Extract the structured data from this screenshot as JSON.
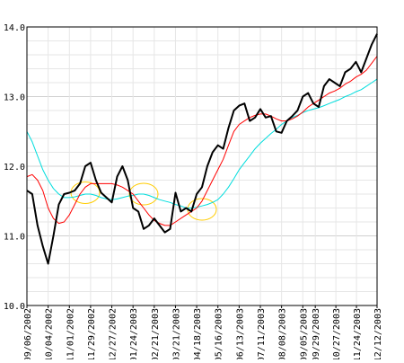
{
  "chart_data": {
    "type": "line",
    "title": "",
    "xlabel": "",
    "ylabel": "",
    "ylim": [
      10.0,
      14.0
    ],
    "grid": true,
    "legend": "none",
    "y_ticks": [
      "10.0",
      "11.0",
      "12.0",
      "13.0",
      "14.0"
    ],
    "x": [
      "09/06/2002",
      "09/13/2002",
      "09/20/2002",
      "09/27/2002",
      "10/04/2002",
      "10/11/2002",
      "10/18/2002",
      "10/25/2002",
      "11/01/2002",
      "11/08/2002",
      "11/15/2002",
      "11/22/2002",
      "11/29/2002",
      "12/06/2002",
      "12/13/2002",
      "12/20/2002",
      "12/27/2002",
      "01/03/2003",
      "01/10/2003",
      "01/17/2003",
      "01/24/2003",
      "01/31/2003",
      "02/07/2003",
      "02/14/2003",
      "02/21/2003",
      "02/28/2003",
      "03/07/2003",
      "03/14/2003",
      "03/21/2003",
      "03/28/2003",
      "04/04/2003",
      "04/11/2003",
      "04/18/2003",
      "04/25/2003",
      "05/02/2003",
      "05/09/2003",
      "05/16/2003",
      "05/23/2003",
      "05/30/2003",
      "06/06/2003",
      "06/13/2003",
      "06/20/2003",
      "06/27/2003",
      "07/04/2003",
      "07/11/2003",
      "07/18/2003",
      "07/25/2003",
      "08/01/2003",
      "08/08/2003",
      "08/15/2003",
      "08/22/2003",
      "08/29/2003",
      "09/05/2003",
      "09/12/2003",
      "09/19/2003",
      "09/26/2003",
      "10/03/2003",
      "10/10/2003",
      "10/17/2003",
      "10/24/2003",
      "10/31/2003",
      "11/07/2003",
      "11/14/2003",
      "11/21/2003",
      "11/28/2003",
      "12/05/2003",
      "12/12/2003"
    ],
    "x_tick_labels": [
      "09/06/2002",
      "10/04/2002",
      "11/01/2002",
      "11/29/2002",
      "12/27/2002",
      "01/24/2003",
      "02/21/2003",
      "03/21/2003",
      "04/18/2003",
      "05/16/2003",
      "06/13/2003",
      "07/11/2003",
      "08/08/2003",
      "09/05/2003",
      "09/29/2003",
      "10/27/2003",
      "11/24/2003",
      "12/12/2003"
    ],
    "series": [
      {
        "color": "#000000",
        "values": [
          11.65,
          11.6,
          11.15,
          10.85,
          10.6,
          11.0,
          11.45,
          11.6,
          11.62,
          11.65,
          11.75,
          12.0,
          12.05,
          11.8,
          11.62,
          11.55,
          11.48,
          11.85,
          12.0,
          11.8,
          11.4,
          11.35,
          11.1,
          11.15,
          11.25,
          11.15,
          11.05,
          11.1,
          11.62,
          11.35,
          11.4,
          11.35,
          11.6,
          11.7,
          12.0,
          12.2,
          12.3,
          12.25,
          12.55,
          12.8,
          12.87,
          12.9,
          12.65,
          12.7,
          12.82,
          12.7,
          12.72,
          12.5,
          12.48,
          12.65,
          12.72,
          12.8,
          13.0,
          13.05,
          12.9,
          12.85,
          13.15,
          13.25,
          13.2,
          13.15,
          13.35,
          13.4,
          13.5,
          13.35,
          13.55,
          13.75,
          13.9
        ]
      },
      {
        "color": "#ff0000",
        "values": [
          11.85,
          11.88,
          11.8,
          11.65,
          11.4,
          11.25,
          11.18,
          11.2,
          11.3,
          11.45,
          11.6,
          11.7,
          11.75,
          11.75,
          11.75,
          11.75,
          11.75,
          11.73,
          11.7,
          11.65,
          11.6,
          11.5,
          11.4,
          11.3,
          11.22,
          11.18,
          11.15,
          11.15,
          11.2,
          11.25,
          11.3,
          11.35,
          11.4,
          11.5,
          11.65,
          11.8,
          11.95,
          12.1,
          12.3,
          12.5,
          12.6,
          12.65,
          12.7,
          12.73,
          12.75,
          12.75,
          12.72,
          12.68,
          12.65,
          12.65,
          12.68,
          12.72,
          12.78,
          12.85,
          12.9,
          12.95,
          13.0,
          13.05,
          13.08,
          13.12,
          13.18,
          13.22,
          13.28,
          13.32,
          13.38,
          13.48,
          13.58
        ]
      },
      {
        "color": "#00dddd",
        "values": [
          12.5,
          12.35,
          12.15,
          11.95,
          11.8,
          11.68,
          11.6,
          11.55,
          11.55,
          11.56,
          11.58,
          11.6,
          11.6,
          11.58,
          11.55,
          11.53,
          11.52,
          11.53,
          11.55,
          11.57,
          11.58,
          11.6,
          11.6,
          11.58,
          11.55,
          11.52,
          11.5,
          11.48,
          11.45,
          11.43,
          11.4,
          11.4,
          11.41,
          11.43,
          11.45,
          11.48,
          11.52,
          11.6,
          11.7,
          11.82,
          11.95,
          12.05,
          12.15,
          12.25,
          12.33,
          12.4,
          12.47,
          12.53,
          12.6,
          12.65,
          12.7,
          12.73,
          12.77,
          12.8,
          12.82,
          12.84,
          12.87,
          12.9,
          12.93,
          12.96,
          13.0,
          13.03,
          13.07,
          13.1,
          13.15,
          13.2,
          13.25
        ]
      }
    ],
    "highlights": [
      {
        "x_index": 11,
        "y": 11.62,
        "color": "#ffcc00"
      },
      {
        "x_index": 22,
        "y": 11.6,
        "color": "#ffcc00"
      },
      {
        "x_index": 33,
        "y": 11.38,
        "color": "#ffcc00"
      }
    ]
  }
}
